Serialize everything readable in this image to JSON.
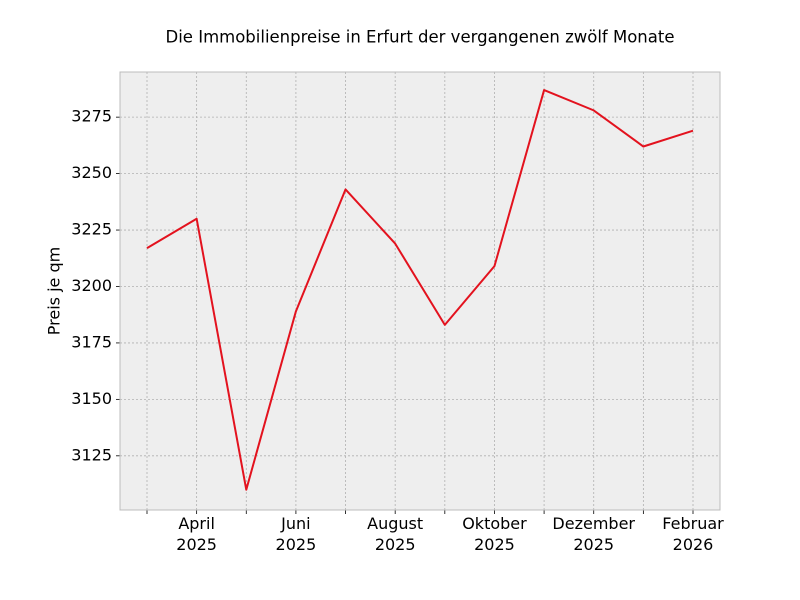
{
  "chart_data": {
    "type": "line",
    "title": "Die Immobilienpreise in Erfurt der vergangenen zwölf Monate",
    "y_label": "Preis je qm",
    "categories": [
      null,
      "April\n2025",
      null,
      "Juni\n2025",
      null,
      "August\n2025",
      null,
      "Oktober\n2025",
      null,
      "Dezember\n2025",
      null,
      "Februar\n2026"
    ],
    "series": [
      {
        "name": "Preis",
        "color": "#e3121e",
        "values": [
          3217,
          3230,
          3110,
          3189,
          3243,
          3219,
          3183,
          3209,
          3287,
          3278,
          3262,
          3269
        ]
      }
    ],
    "ylim": [
      3101,
      3295
    ],
    "yticks": [
      3125,
      3150,
      3175,
      3200,
      3225,
      3250,
      3275
    ],
    "grid": true
  }
}
